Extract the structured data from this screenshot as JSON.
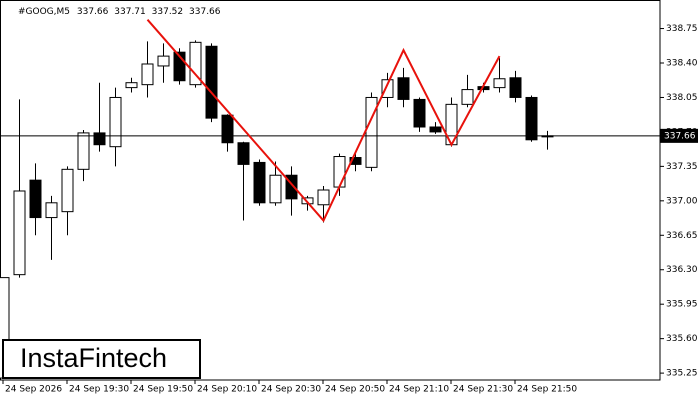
{
  "chart_data": {
    "type": "candlestick",
    "title": "#GOOG,M5",
    "categories": [
      "24 Sep 2026",
      null,
      null,
      null,
      "24 Sep 19:30",
      null,
      null,
      null,
      "24 Sep 19:50",
      null,
      null,
      null,
      "24 Sep 20:10",
      null,
      null,
      null,
      "24 Sep 20:30",
      null,
      null,
      null,
      "24 Sep 20:50",
      null,
      null,
      null,
      "24 Sep 21:10",
      null,
      null,
      null,
      "24 Sep 21:30",
      null,
      null,
      null,
      "24 Sep 21:50",
      null,
      null
    ],
    "open": [
      335.2,
      336.25,
      337.21,
      336.83,
      336.89,
      337.32,
      337.69,
      337.55,
      338.15,
      338.18,
      338.37,
      338.51,
      338.18,
      338.57,
      337.87,
      337.59,
      337.39,
      336.98,
      337.26,
      336.97,
      336.96,
      337.14,
      337.44,
      337.34,
      338.05,
      338.25,
      338.03,
      337.75,
      337.57,
      337.98,
      338.16,
      338.15,
      338.25,
      338.05,
      337.66
    ],
    "high": [
      336.22,
      338.03,
      337.38,
      337.05,
      337.35,
      337.72,
      338.2,
      338.15,
      338.25,
      338.62,
      338.6,
      338.55,
      338.63,
      338.6,
      337.88,
      337.6,
      337.42,
      337.4,
      337.35,
      337.05,
      337.15,
      337.48,
      337.5,
      338.1,
      338.3,
      338.35,
      338.05,
      337.8,
      338.05,
      338.28,
      338.2,
      338.45,
      338.32,
      338.07,
      337.71
    ],
    "low": [
      335.2,
      336.22,
      336.65,
      336.4,
      336.65,
      337.2,
      337.5,
      337.35,
      338.1,
      338.05,
      338.2,
      338.18,
      338.15,
      337.8,
      337.5,
      336.8,
      336.95,
      336.95,
      336.85,
      336.9,
      336.78,
      337.05,
      337.3,
      337.3,
      337.95,
      337.95,
      337.7,
      337.68,
      337.55,
      337.95,
      338.1,
      338.1,
      338.0,
      337.6,
      337.52
    ],
    "close": [
      336.22,
      337.1,
      336.83,
      336.98,
      337.32,
      337.69,
      337.57,
      338.05,
      338.2,
      338.39,
      338.47,
      338.22,
      338.61,
      337.84,
      337.59,
      337.37,
      336.98,
      337.26,
      337.02,
      337.03,
      337.11,
      337.45,
      337.37,
      338.05,
      338.23,
      338.03,
      337.75,
      337.7,
      337.98,
      338.13,
      338.13,
      338.24,
      338.05,
      337.62,
      337.66
    ],
    "up_color": "#ffffff",
    "down_color": "#000000",
    "current_price": 337.66,
    "pattern_line": {
      "color": "#e8120c",
      "x": [
        9,
        20,
        25,
        28,
        31
      ],
      "values": [
        338.84,
        336.8,
        338.53,
        337.57,
        338.47
      ]
    },
    "ylim": [
      335.18,
      339.04
    ],
    "yticks": [
      {
        "value": 338.75,
        "label": "338.75"
      },
      {
        "value": 338.4,
        "label": "338.40"
      },
      {
        "value": 338.05,
        "label": "338.05"
      },
      {
        "value": 337.7,
        "label": "337.70"
      },
      {
        "value": 337.35,
        "label": "337.35"
      },
      {
        "value": 337.0,
        "label": "337.00"
      },
      {
        "value": 336.65,
        "label": "336.65"
      },
      {
        "value": 336.3,
        "label": "336.30"
      },
      {
        "value": 335.95,
        "label": "335.95"
      },
      {
        "value": 335.6,
        "label": "335.60"
      },
      {
        "value": 335.25,
        "label": "335.25"
      }
    ],
    "watermark": "InstaFintech"
  }
}
